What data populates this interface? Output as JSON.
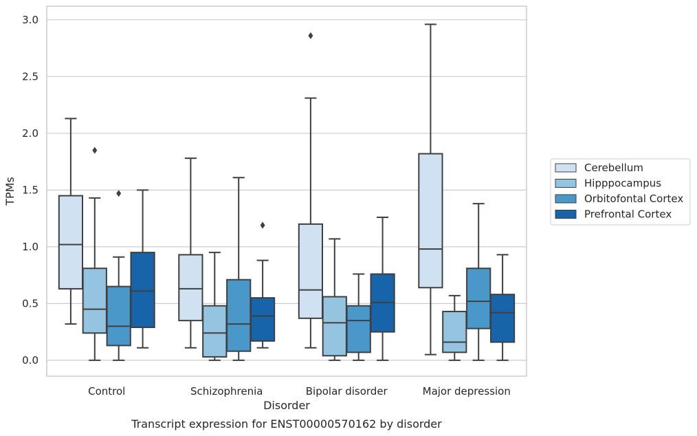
{
  "chart_data": {
    "type": "boxplot",
    "xlabel": "Disorder",
    "ylabel": "TPMs",
    "caption": "Transcript expression for ENST00000570162 by disorder",
    "ylim": [
      -0.14,
      3.12
    ],
    "yticks": [
      "0.0",
      "0.5",
      "1.0",
      "1.5",
      "2.0",
      "2.5",
      "3.0"
    ],
    "grid": true,
    "legend_position": "right",
    "categories": [
      "Control",
      "Schizophrenia",
      "Bipolar disorder",
      "Major depression"
    ],
    "series": [
      {
        "name": "Cerebellum",
        "color": "#d0e1f2",
        "boxes": [
          {
            "whislo": 0.32,
            "q1": 0.63,
            "med": 1.02,
            "q3": 1.45,
            "whishi": 2.13,
            "fliers": []
          },
          {
            "whislo": 0.11,
            "q1": 0.35,
            "med": 0.63,
            "q3": 0.93,
            "whishi": 1.78,
            "fliers": []
          },
          {
            "whislo": 0.11,
            "q1": 0.37,
            "med": 0.62,
            "q3": 1.2,
            "whishi": 2.31,
            "fliers": [
              2.86
            ]
          },
          {
            "whislo": 0.05,
            "q1": 0.64,
            "med": 0.98,
            "q3": 1.82,
            "whishi": 2.96,
            "fliers": []
          }
        ]
      },
      {
        "name": "Hipppocampus",
        "color": "#94c4df",
        "boxes": [
          {
            "whislo": 0.0,
            "q1": 0.24,
            "med": 0.45,
            "q3": 0.81,
            "whishi": 1.43,
            "fliers": [
              1.85
            ]
          },
          {
            "whislo": 0.0,
            "q1": 0.03,
            "med": 0.24,
            "q3": 0.48,
            "whishi": 0.95,
            "fliers": []
          },
          {
            "whislo": 0.0,
            "q1": 0.04,
            "med": 0.33,
            "q3": 0.56,
            "whishi": 1.07,
            "fliers": []
          },
          {
            "whislo": 0.0,
            "q1": 0.07,
            "med": 0.16,
            "q3": 0.43,
            "whishi": 0.57,
            "fliers": []
          }
        ]
      },
      {
        "name": "Orbitofontal Cortex",
        "color": "#4a98c9",
        "boxes": [
          {
            "whislo": 0.0,
            "q1": 0.13,
            "med": 0.3,
            "q3": 0.65,
            "whishi": 0.91,
            "fliers": [
              1.47
            ]
          },
          {
            "whislo": 0.0,
            "q1": 0.08,
            "med": 0.32,
            "q3": 0.71,
            "whishi": 1.61,
            "fliers": []
          },
          {
            "whislo": 0.0,
            "q1": 0.07,
            "med": 0.35,
            "q3": 0.48,
            "whishi": 0.76,
            "fliers": []
          },
          {
            "whislo": 0.0,
            "q1": 0.28,
            "med": 0.52,
            "q3": 0.81,
            "whishi": 1.38,
            "fliers": []
          }
        ]
      },
      {
        "name": "Prefrontal Cortex",
        "color": "#1764ab",
        "boxes": [
          {
            "whislo": 0.11,
            "q1": 0.29,
            "med": 0.61,
            "q3": 0.95,
            "whishi": 1.5,
            "fliers": []
          },
          {
            "whislo": 0.11,
            "q1": 0.17,
            "med": 0.39,
            "q3": 0.55,
            "whishi": 0.88,
            "fliers": [
              1.19
            ]
          },
          {
            "whislo": 0.0,
            "q1": 0.25,
            "med": 0.51,
            "q3": 0.76,
            "whishi": 1.26,
            "fliers": []
          },
          {
            "whislo": 0.0,
            "q1": 0.16,
            "med": 0.42,
            "q3": 0.58,
            "whishi": 0.93,
            "fliers": []
          }
        ]
      }
    ]
  }
}
